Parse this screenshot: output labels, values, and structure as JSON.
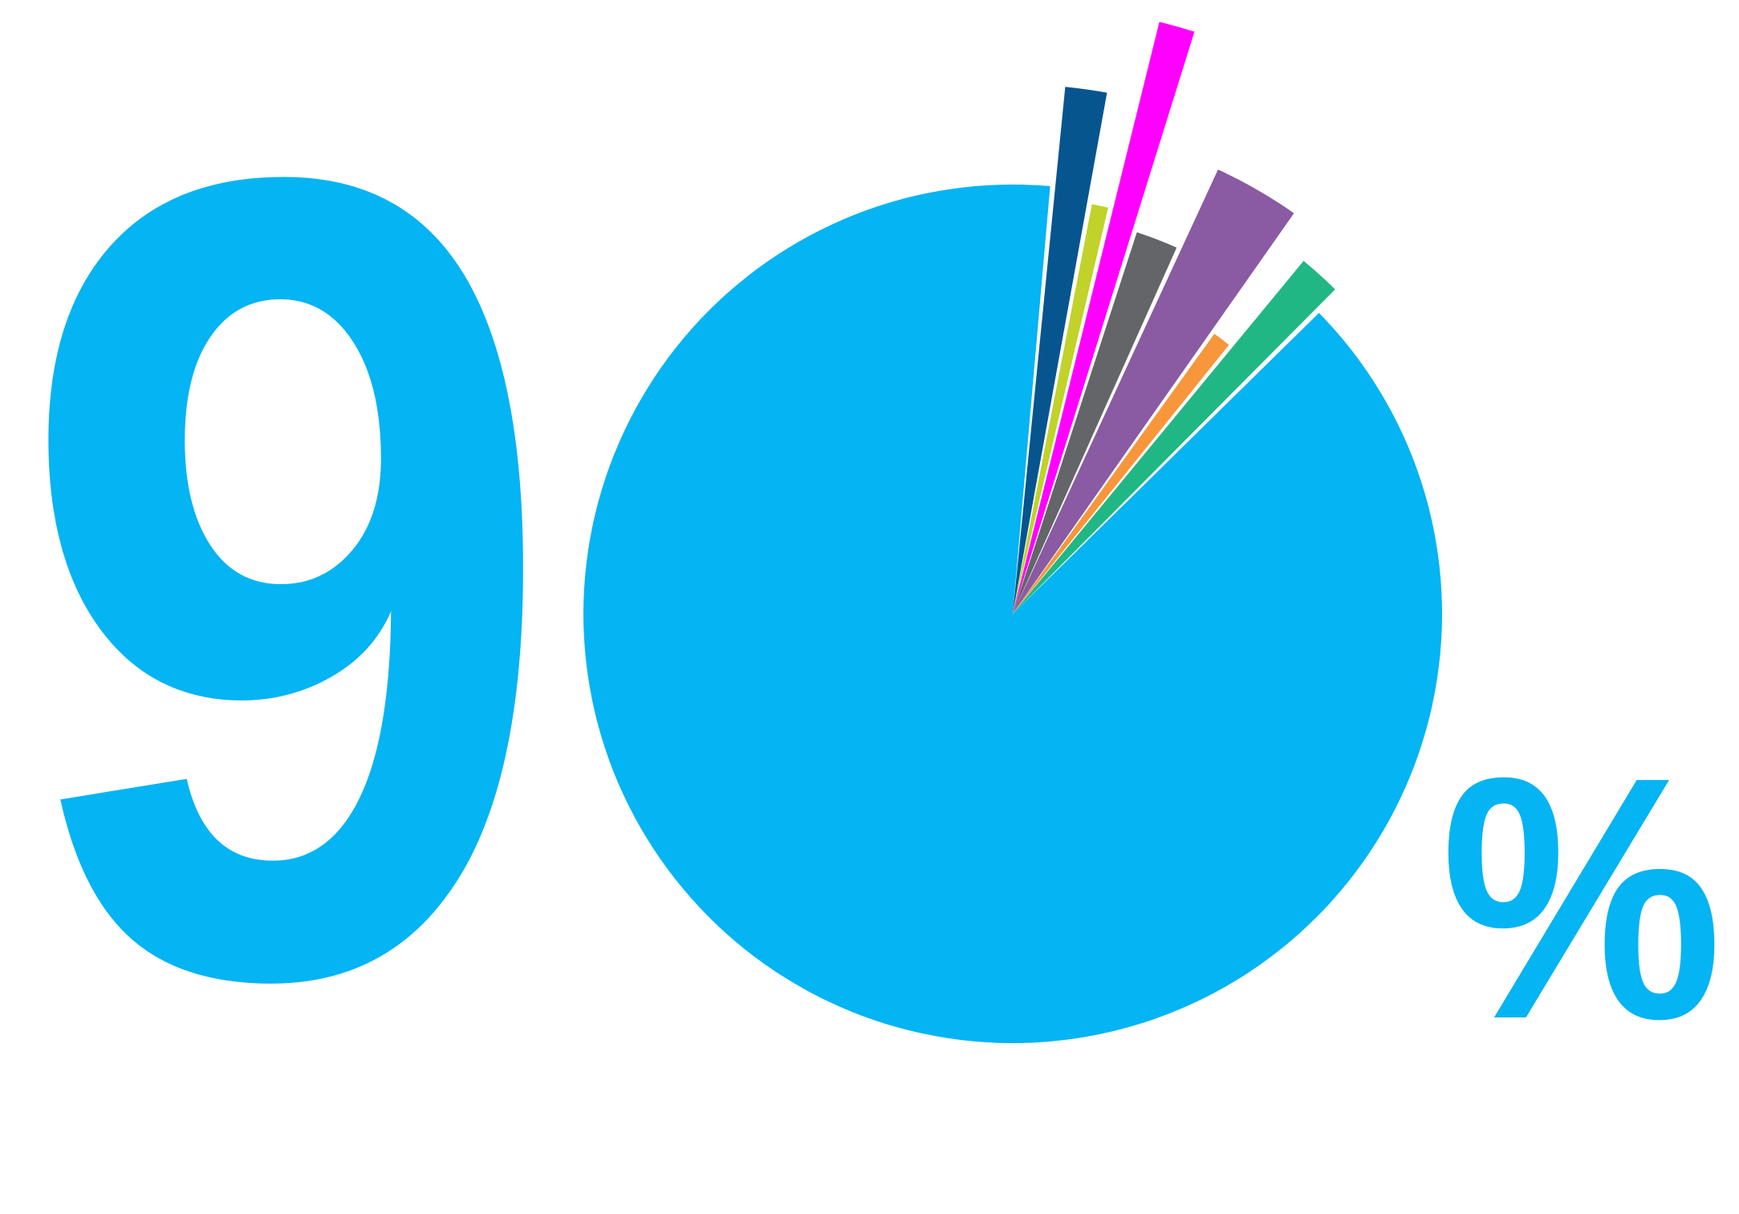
{
  "headline": {
    "digit": "9",
    "percent_sign": "%"
  },
  "chart_data": {
    "type": "pie",
    "total_percent": 90,
    "slices": [
      {
        "value": 90,
        "color": "#05B4F2",
        "exploded": false
      },
      {
        "value": 1.2,
        "color": "#06558F",
        "exploded": true
      },
      {
        "value": 0.6,
        "color": "#C1D22A",
        "exploded": true
      },
      {
        "value": 0.9,
        "color": "#FF00FF",
        "exploded": true
      },
      {
        "value": 1.6,
        "color": "#636569",
        "exploded": true
      },
      {
        "value": 2.7,
        "color": "#8A5AA3",
        "exploded": true
      },
      {
        "value": 0.8,
        "color": "#F7963A",
        "exploded": true
      },
      {
        "value": 1.4,
        "color": "#20B785",
        "exploded": true
      }
    ]
  }
}
